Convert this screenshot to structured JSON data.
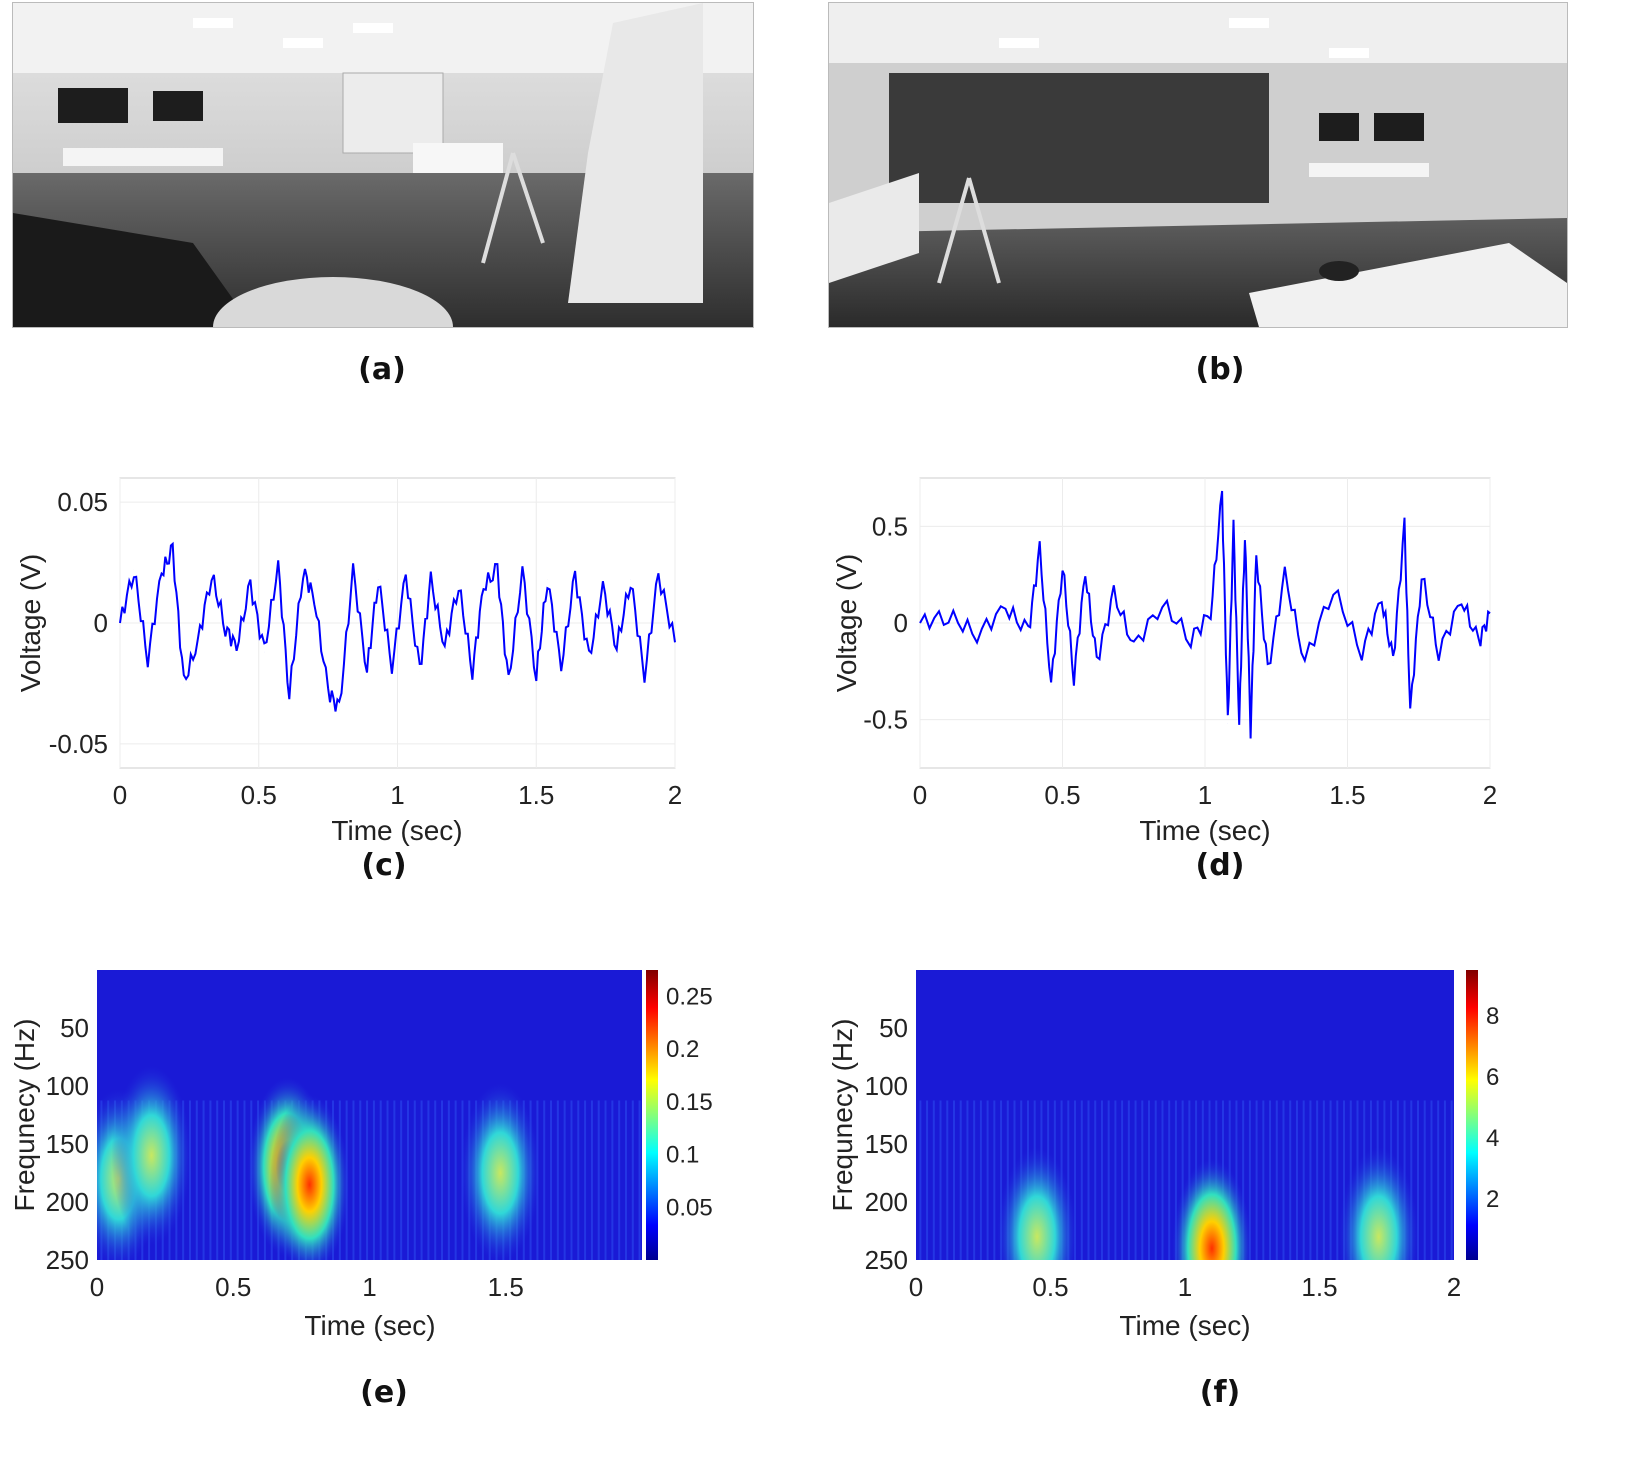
{
  "panels": {
    "a": "(a)",
    "b": "(b)",
    "c": "(c)",
    "d": "(d)",
    "e": "(e)",
    "f": "(f)"
  },
  "chart_data": [
    {
      "panel": "c",
      "type": "line",
      "xlabel": "Time (sec)",
      "ylabel": "Voltage (V)",
      "xlim": [
        0,
        2
      ],
      "ylim": [
        -0.06,
        0.06
      ],
      "xticks": [
        "0",
        "0.5",
        "1",
        "1.5",
        "2"
      ],
      "yticks": [
        "-0.05",
        "0",
        "0.05"
      ],
      "grid": true,
      "color": "#0000ff",
      "series": [
        {
          "x": [
            0,
            0.05,
            0.1,
            0.15,
            0.19,
            0.23,
            0.28,
            0.33,
            0.38,
            0.42,
            0.47,
            0.52,
            0.57,
            0.61,
            0.66,
            0.7,
            0.75,
            0.79,
            0.84,
            0.89,
            0.93,
            0.98,
            1.03,
            1.08,
            1.12,
            1.17,
            1.22,
            1.27,
            1.31,
            1.36,
            1.4,
            1.45,
            1.5,
            1.54,
            1.59,
            1.64,
            1.69,
            1.74,
            1.79,
            1.84,
            1.89,
            1.94,
            2.0
          ],
          "y": [
            0,
            0.022,
            -0.015,
            0.021,
            0.03,
            -0.025,
            -0.008,
            0.02,
            -0.002,
            -0.01,
            0.016,
            -0.012,
            0.024,
            -0.03,
            0.022,
            0.01,
            -0.028,
            -0.036,
            0.022,
            -0.02,
            0.018,
            -0.018,
            0.02,
            -0.02,
            0.018,
            -0.01,
            0.016,
            -0.02,
            0.015,
            0.022,
            -0.025,
            0.022,
            -0.022,
            0.018,
            -0.018,
            0.02,
            -0.015,
            0.015,
            -0.01,
            0.018,
            -0.022,
            0.02,
            -0.008
          ]
        }
      ]
    },
    {
      "panel": "d",
      "type": "line",
      "xlabel": "Time (sec)",
      "ylabel": "Voltage (V)",
      "xlim": [
        0,
        2
      ],
      "ylim": [
        -0.75,
        0.75
      ],
      "xticks": [
        "0",
        "0.5",
        "1",
        "1.5",
        "2"
      ],
      "yticks": [
        "-0.5",
        "0",
        "0.5"
      ],
      "grid": true,
      "color": "#0000ff",
      "series": [
        {
          "x": [
            0,
            0.1,
            0.2,
            0.3,
            0.38,
            0.42,
            0.46,
            0.5,
            0.54,
            0.58,
            0.62,
            0.68,
            0.75,
            0.85,
            0.95,
            1.02,
            1.06,
            1.08,
            1.1,
            1.12,
            1.14,
            1.16,
            1.18,
            1.22,
            1.28,
            1.35,
            1.45,
            1.55,
            1.62,
            1.66,
            1.7,
            1.72,
            1.76,
            1.82,
            1.9,
            1.96,
            2.0
          ],
          "y": [
            0,
            0.04,
            -0.06,
            0.08,
            -0.05,
            0.38,
            -0.32,
            0.3,
            -0.28,
            0.26,
            -0.2,
            0.15,
            -0.12,
            0.1,
            -0.08,
            0.05,
            0.67,
            -0.52,
            0.5,
            -0.52,
            0.47,
            -0.56,
            0.35,
            -0.25,
            0.25,
            -0.2,
            0.18,
            -0.15,
            0.12,
            -0.2,
            0.5,
            -0.46,
            0.25,
            -0.15,
            0.12,
            -0.1,
            0.05
          ]
        }
      ]
    },
    {
      "panel": "e",
      "type": "heatmap",
      "xlabel": "Time (sec)",
      "ylabel": "Frequnecy (Hz)",
      "xlim": [
        0,
        2
      ],
      "ylim": [
        0,
        250
      ],
      "xticks": [
        "0",
        "0.5",
        "1",
        "1.5"
      ],
      "yticks": [
        "50",
        "100",
        "150",
        "200",
        "250"
      ],
      "colorbar_ticks": [
        "0.05",
        "0.1",
        "0.15",
        "0.2",
        "0.25"
      ],
      "colorbar_range": [
        0,
        0.275
      ],
      "hotspots": [
        {
          "t": 0.08,
          "f": 180,
          "v": 0.12
        },
        {
          "t": 0.2,
          "f": 160,
          "v": 0.1
        },
        {
          "t": 0.7,
          "f": 170,
          "v": 0.22
        },
        {
          "t": 0.78,
          "f": 185,
          "v": 0.27
        },
        {
          "t": 1.48,
          "f": 175,
          "v": 0.18
        }
      ]
    },
    {
      "panel": "f",
      "type": "heatmap",
      "xlabel": "Time (sec)",
      "ylabel": "Frequnecy (Hz)",
      "xlim": [
        0,
        2
      ],
      "ylim": [
        0,
        250
      ],
      "xticks": [
        "0",
        "0.5",
        "1",
        "1.5",
        "2"
      ],
      "yticks": [
        "50",
        "100",
        "150",
        "200",
        "250"
      ],
      "colorbar_ticks": [
        "2",
        "4",
        "6",
        "8"
      ],
      "colorbar_range": [
        0,
        9.5
      ],
      "hotspots": [
        {
          "t": 0.45,
          "f": 230,
          "v": 3
        },
        {
          "t": 1.1,
          "f": 240,
          "v": 9.2
        },
        {
          "t": 1.72,
          "f": 230,
          "v": 3.2
        }
      ]
    }
  ],
  "colors": {
    "line": "#0000ff",
    "heat_bg": "#1a1ad6",
    "grid": "#ececec"
  },
  "photos": [
    {
      "panel": "a",
      "icon": "classroom-photo"
    },
    {
      "panel": "b",
      "icon": "classroom-photo"
    }
  ]
}
